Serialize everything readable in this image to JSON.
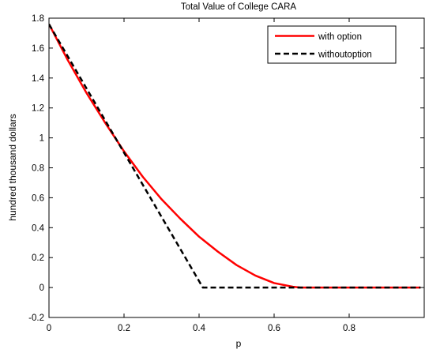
{
  "chart_data": {
    "type": "line",
    "title": "Total Value of College CARA",
    "xlabel": "p",
    "ylabel": "hundred thousand dollars",
    "xlim": [
      0,
      1
    ],
    "ylim": [
      -0.2,
      1.8
    ],
    "xticks": [
      0,
      0.2,
      0.4,
      0.6,
      0.8
    ],
    "xtick_labels": [
      "0",
      "0.2",
      "0.4",
      "0.6",
      "0.8"
    ],
    "yticks": [
      -0.2,
      0,
      0.2,
      0.4,
      0.6,
      0.8,
      1,
      1.2,
      1.4,
      1.6,
      1.8
    ],
    "ytick_labels": [
      "-0.2",
      "0",
      "0.2",
      "0.4",
      "0.6",
      "0.8",
      "1",
      "1.2",
      "1.4",
      "1.6",
      "1.8"
    ],
    "grid": false,
    "legend_position": "top-right",
    "series": [
      {
        "name": "with option",
        "color": "#ff0000",
        "style": "solid",
        "x": [
          0,
          0.05,
          0.1,
          0.15,
          0.2,
          0.25,
          0.3,
          0.35,
          0.4,
          0.45,
          0.5,
          0.55,
          0.6,
          0.65,
          0.67,
          0.7,
          0.8,
          0.9,
          0.99
        ],
        "y": [
          1.76,
          1.52,
          1.3,
          1.1,
          0.91,
          0.74,
          0.59,
          0.46,
          0.34,
          0.24,
          0.15,
          0.08,
          0.03,
          0.005,
          0,
          0,
          0,
          0,
          0
        ]
      },
      {
        "name": "withoutoption",
        "color": "#000000",
        "style": "dashed",
        "x": [
          0,
          0.41,
          0.5,
          0.6,
          0.7,
          0.8,
          0.9,
          0.99
        ],
        "y": [
          1.76,
          0,
          0,
          0,
          0,
          0,
          0,
          0
        ]
      }
    ]
  }
}
